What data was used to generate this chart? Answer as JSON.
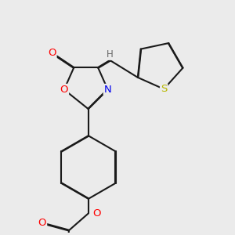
{
  "bg_color": "#ebebeb",
  "bond_color": "#1a1a1a",
  "bond_width": 1.5,
  "atom_colors": {
    "O": "#ff0000",
    "N": "#0000ee",
    "S": "#b8b800",
    "H": "#666666",
    "C": "#1a1a1a"
  },
  "font_size_atom": 9.5
}
